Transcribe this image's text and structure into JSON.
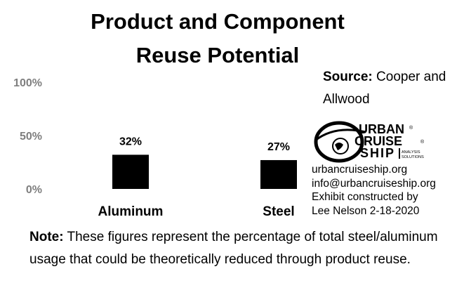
{
  "chart_data": {
    "type": "bar",
    "title": [
      "Product and Component",
      "Reuse Potential"
    ],
    "categories": [
      "Aluminum",
      "Steel"
    ],
    "values": [
      32,
      27
    ],
    "value_labels": [
      "32%",
      "27%"
    ],
    "ylim": [
      0,
      100
    ],
    "yticks": [
      0,
      50,
      100
    ],
    "ytick_labels": [
      "0%",
      "50%",
      "100%"
    ],
    "bar_color": "#000000",
    "grid": false,
    "legend": "none"
  },
  "source": {
    "label": "Source:",
    "text": "Cooper and Allwood"
  },
  "logo": {
    "line1": "URBAN",
    "line2": "CRUISE",
    "line3": "SHIP",
    "tagline1": "ANALYSIS",
    "tagline2": "SOLUTIONS",
    "trademark": "®"
  },
  "contact": [
    "urbancruiseship.org",
    "info@urbancruiseship.org",
    "Exhibit constructed by",
    "Lee Nelson 2-18-2020"
  ],
  "note": {
    "label": "Note:",
    "text": "These figures represent the percentage of total steel/aluminum usage that could be theoretically reduced through product reuse."
  }
}
